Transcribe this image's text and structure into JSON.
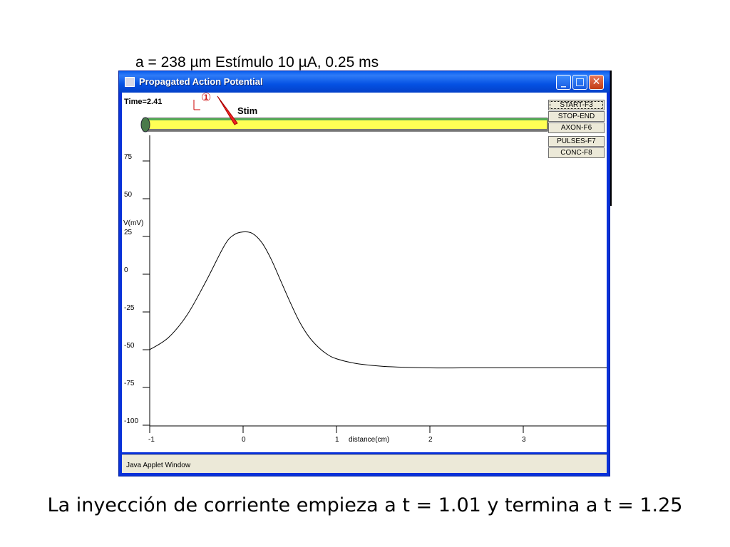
{
  "slide": {
    "title": "a = 238 µm  Estímulo 10 µA, 0.25  ms",
    "caption": "La inyección de corriente empieza a t = 1.01 y termina a t = 1.25"
  },
  "window": {
    "title": "Propagated Action Potential",
    "controls": {
      "minimize": "_",
      "maximize": "□",
      "close": "✕"
    },
    "status_text": "Java Applet Window",
    "colors": {
      "titlebar": "#0552e4",
      "axon": "#ffff55",
      "close": "#c23c14"
    }
  },
  "applet": {
    "time_label": "Time=2.41",
    "stim_label": "Stim",
    "buttons": [
      "START-F3",
      "STOP-END",
      "AXON-F6",
      "PULSES-F7",
      "CONC-F8"
    ],
    "stim_marker_symbol": "①"
  },
  "chart_data": {
    "type": "line",
    "xlabel": "distance(cm)",
    "ylabel": "V(mV)",
    "xlim": [
      -1,
      3.95
    ],
    "ylim": [
      -100,
      80
    ],
    "x_ticks": [
      -1,
      0,
      1,
      2,
      3
    ],
    "y_ticks": [
      75,
      50,
      25,
      0,
      -25,
      -50,
      -75,
      -100
    ],
    "series": [
      {
        "x": [
          -1,
          -0.8,
          -0.6,
          -0.4,
          -0.2,
          -0.1,
          0,
          0.1,
          0.2,
          0.3,
          0.4,
          0.5,
          0.6,
          0.7,
          0.8,
          0.9,
          1.0,
          1.2,
          1.5,
          2.0,
          2.5,
          3.0,
          3.5,
          3.95
        ],
        "y": [
          -50,
          -42,
          -27,
          -5,
          19,
          26,
          28,
          27,
          21,
          10,
          -4,
          -18,
          -31,
          -41,
          -48,
          -53,
          -56,
          -59,
          -61,
          -62,
          -62,
          -62,
          -62,
          -62
        ]
      }
    ]
  }
}
